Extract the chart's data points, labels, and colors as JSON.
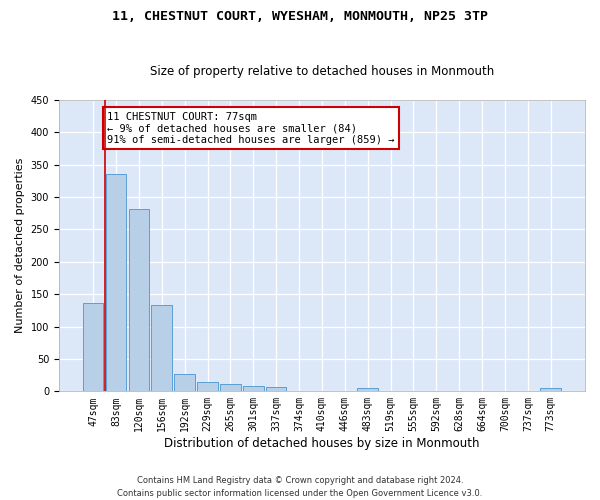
{
  "title1": "11, CHESTNUT COURT, WYESHAM, MONMOUTH, NP25 3TP",
  "title2": "Size of property relative to detached houses in Monmouth",
  "xlabel": "Distribution of detached houses by size in Monmouth",
  "ylabel": "Number of detached properties",
  "bar_labels": [
    "47sqm",
    "83sqm",
    "120sqm",
    "156sqm",
    "192sqm",
    "229sqm",
    "265sqm",
    "301sqm",
    "337sqm",
    "374sqm",
    "410sqm",
    "446sqm",
    "483sqm",
    "519sqm",
    "555sqm",
    "592sqm",
    "628sqm",
    "664sqm",
    "700sqm",
    "737sqm",
    "773sqm"
  ],
  "bar_values": [
    136,
    336,
    281,
    134,
    27,
    15,
    11,
    8,
    6,
    0,
    0,
    0,
    5,
    0,
    0,
    0,
    0,
    0,
    0,
    0,
    5
  ],
  "bar_color": "#b8cfe8",
  "bar_edge_color": "#5a9fd4",
  "annotation_text": "11 CHESTNUT COURT: 77sqm\n← 9% of detached houses are smaller (84)\n91% of semi-detached houses are larger (859) →",
  "annotation_box_color": "#ffffff",
  "annotation_box_edge": "#cc0000",
  "annotation_text_fontsize": 7.5,
  "vline_color": "#cc0000",
  "vline_x": 0.5,
  "footer_text": "Contains HM Land Registry data © Crown copyright and database right 2024.\nContains public sector information licensed under the Open Government Licence v3.0.",
  "background_color": "#dce8f8",
  "ylim": [
    0,
    450
  ],
  "title_fontsize": 9.5,
  "subtitle_fontsize": 8.5,
  "ylabel_fontsize": 8,
  "xlabel_fontsize": 8.5,
  "tick_fontsize": 7
}
